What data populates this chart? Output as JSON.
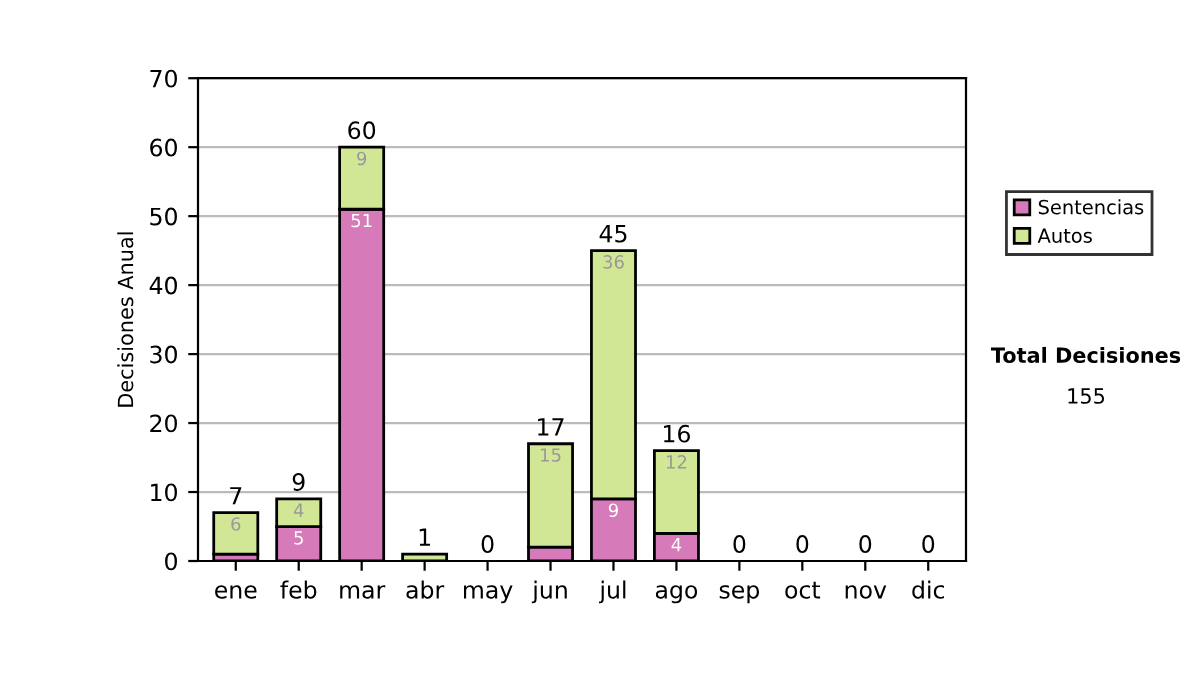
{
  "chart_data": {
    "type": "bar",
    "stacked": true,
    "ylabel": "Decisiones Anual",
    "categories": [
      "ene",
      "feb",
      "mar",
      "abr",
      "may",
      "jun",
      "jul",
      "ago",
      "sep",
      "oct",
      "nov",
      "dic"
    ],
    "series": [
      {
        "name": "Sentencias",
        "color": "#d67ab9",
        "values": [
          1,
          5,
          51,
          0,
          0,
          2,
          9,
          4,
          0,
          0,
          0,
          0
        ],
        "value_labels": [
          null,
          "5",
          "51",
          null,
          null,
          null,
          "9",
          "4",
          null,
          null,
          null,
          null
        ]
      },
      {
        "name": "Autos",
        "color": "#d2e796",
        "values": [
          6,
          4,
          9,
          1,
          0,
          15,
          36,
          12,
          0,
          0,
          0,
          0
        ],
        "value_labels": [
          "6",
          "4",
          "9",
          null,
          null,
          "15",
          "36",
          "12",
          null,
          null,
          null,
          null
        ]
      }
    ],
    "totals": [
      "7",
      "9",
      "60",
      "1",
      "0",
      "17",
      "45",
      "16",
      "0",
      "0",
      "0",
      "0"
    ],
    "ylim": [
      0,
      70
    ],
    "yticks": [
      0,
      10,
      20,
      30,
      40,
      50,
      60,
      70
    ],
    "grid": "y",
    "legend": "right",
    "annotations": [
      "Total Decisiones",
      "155"
    ]
  }
}
